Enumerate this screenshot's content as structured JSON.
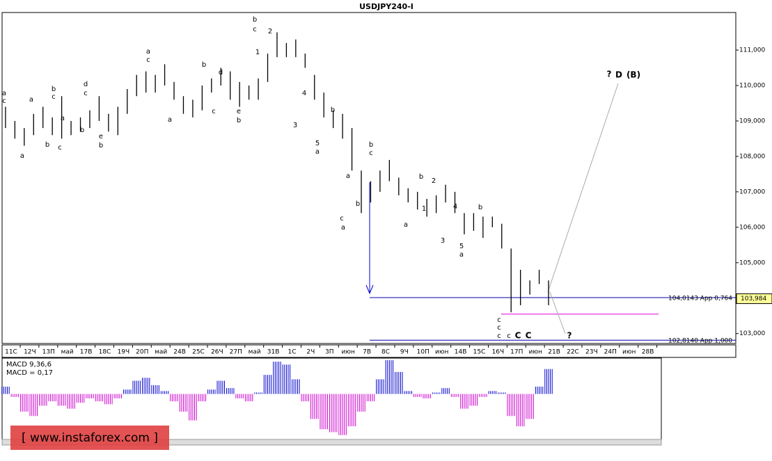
{
  "chart_data": [
    {
      "type": "ohlc",
      "title": "USDJPY240-I",
      "x": [
        -0.3,
        0.2,
        0.7,
        1.2,
        1.7,
        2.2,
        2.7,
        3.2,
        3.7,
        4.2,
        4.7,
        5.2,
        5.7,
        6.2,
        6.7,
        7.2,
        7.7,
        8.2,
        8.7,
        9.2,
        9.7,
        10.2,
        10.7,
        11.2,
        11.7,
        12.2,
        12.7,
        13.2,
        13.7,
        14.2,
        14.7,
        15.2,
        15.7,
        16.2,
        16.7,
        17.2,
        17.7,
        18.2,
        18.7,
        19.2,
        19.7,
        20.2,
        20.7,
        21.2,
        21.7,
        22.2,
        22.7,
        23.2,
        23.7,
        24.2,
        24.7,
        25.2,
        25.7,
        26.2,
        26.7,
        27.2,
        27.7,
        28.2,
        28.7
      ],
      "high": [
        109.4,
        109.0,
        108.8,
        109.2,
        109.4,
        109.1,
        109.7,
        109.0,
        109.1,
        109.3,
        109.7,
        109.2,
        109.4,
        109.9,
        110.3,
        110.4,
        110.3,
        110.6,
        110.1,
        109.7,
        109.6,
        110.0,
        110.2,
        110.5,
        110.4,
        110.1,
        110.0,
        110.2,
        110.9,
        111.5,
        111.2,
        111.3,
        110.9,
        110.3,
        109.8,
        109.3,
        109.2,
        108.8,
        107.6,
        107.3,
        107.6,
        107.9,
        107.4,
        107.1,
        107.0,
        106.8,
        106.9,
        107.2,
        107.0,
        106.4,
        106.4,
        106.3,
        106.3,
        106.1,
        105.4,
        104.8,
        104.5,
        104.8,
        104.5
      ],
      "low": [
        108.8,
        108.5,
        108.3,
        108.6,
        108.8,
        108.6,
        108.5,
        108.6,
        108.7,
        108.8,
        109.0,
        108.7,
        108.6,
        109.2,
        109.7,
        109.8,
        109.8,
        110.0,
        109.6,
        109.2,
        109.1,
        109.3,
        109.8,
        110.0,
        109.6,
        109.4,
        109.6,
        109.6,
        110.1,
        110.8,
        110.8,
        110.8,
        110.5,
        109.6,
        109.1,
        108.8,
        108.5,
        107.6,
        106.4,
        106.7,
        107.0,
        107.3,
        106.9,
        106.7,
        106.5,
        106.3,
        106.4,
        106.7,
        106.4,
        105.8,
        105.9,
        105.7,
        106.0,
        105.4,
        103.6,
        103.8,
        104.1,
        104.4,
        103.8
      ],
      "color": "#000000",
      "xlim": [
        -0.483,
        38.7
      ],
      "xticks": [
        {
          "value": 0,
          "label": "11С"
        },
        {
          "value": 1,
          "label": "12Ч"
        },
        {
          "value": 2,
          "label": "13П"
        },
        {
          "value": 3,
          "label": "май"
        },
        {
          "value": 4,
          "label": "17В"
        },
        {
          "value": 5,
          "label": "18С"
        },
        {
          "value": 6,
          "label": "19Ч"
        },
        {
          "value": 7,
          "label": "20П"
        },
        {
          "value": 8,
          "label": "май"
        },
        {
          "value": 9,
          "label": "24В"
        },
        {
          "value": 10,
          "label": "25С"
        },
        {
          "value": 11,
          "label": "26Ч"
        },
        {
          "value": 12,
          "label": "27П"
        },
        {
          "value": 13,
          "label": "май"
        },
        {
          "value": 14,
          "label": "31В"
        },
        {
          "value": 15,
          "label": "1С"
        },
        {
          "value": 16,
          "label": "2Ч"
        },
        {
          "value": 17,
          "label": "3П"
        },
        {
          "value": 18,
          "label": "июн"
        },
        {
          "value": 19,
          "label": "7В"
        },
        {
          "value": 20,
          "label": "8С"
        },
        {
          "value": 21,
          "label": "9Ч"
        },
        {
          "value": 22,
          "label": "10П"
        },
        {
          "value": 23,
          "label": "июн"
        },
        {
          "value": 24,
          "label": "14В"
        },
        {
          "value": 25,
          "label": "15С"
        },
        {
          "value": 26,
          "label": "16Ч"
        },
        {
          "value": 27,
          "label": "17П"
        },
        {
          "value": 28,
          "label": "июн"
        },
        {
          "value": 29,
          "label": "21В"
        },
        {
          "value": 30,
          "label": "22С"
        },
        {
          "value": 31,
          "label": "23Ч"
        },
        {
          "value": 32,
          "label": "24П"
        },
        {
          "value": 33,
          "label": "июн"
        },
        {
          "value": 34,
          "label": "28В"
        }
      ],
      "ylim": [
        102.72,
        112.06
      ],
      "yticks": [
        {
          "value": 103,
          "label": "103,000"
        },
        {
          "value": 104,
          "label": "104,000"
        },
        {
          "value": 105,
          "label": "105,000"
        },
        {
          "value": 106,
          "label": "106,000"
        },
        {
          "value": 107,
          "label": "107,000"
        },
        {
          "value": 108,
          "label": "108,000"
        },
        {
          "value": 109,
          "label": "109,000"
        },
        {
          "value": 110,
          "label": "110,000"
        },
        {
          "value": 111,
          "label": "111,000"
        }
      ],
      "levels": [
        {
          "value": 104.0143,
          "label": "104,0143 App 0,764",
          "color": "#0000aa"
        },
        {
          "value": 102.814,
          "label": "102,8140 App 1,000",
          "color": "#0000aa"
        }
      ],
      "support_line": {
        "value": 103.55,
        "color": "#dd00dd"
      },
      "current_price": {
        "value": 103.984,
        "label": "103,984"
      },
      "annotations": [
        {
          "text": "a",
          "color": "#000000"
        },
        {
          "text": "c",
          "color": "#0000cc"
        },
        {
          "text": "a",
          "color": "#0000cc"
        },
        {
          "text": "a",
          "color": "#000000"
        },
        {
          "text": "b",
          "color": "#000000"
        },
        {
          "text": "b",
          "color": "#0000cc"
        },
        {
          "text": "c",
          "color": "#000000"
        },
        {
          "text": "c",
          "color": "#0000cc"
        },
        {
          "text": "a",
          "color": "#000000"
        },
        {
          "text": "b",
          "color": "#000000"
        },
        {
          "text": "d",
          "color": "#0000cc"
        },
        {
          "text": "c",
          "color": "#000000"
        },
        {
          "text": "e",
          "color": "#0000cc"
        },
        {
          "text": "b",
          "color": "#000000"
        },
        {
          "text": "a",
          "color": "#0000cc"
        },
        {
          "text": "c",
          "color": "#000000"
        },
        {
          "text": "a",
          "color": "#0000cc"
        },
        {
          "text": "b",
          "color": "#0000cc"
        },
        {
          "text": "d",
          "color": "#0000cc"
        },
        {
          "text": "c",
          "color": "#0000cc"
        },
        {
          "text": "e",
          "color": "#0000cc"
        },
        {
          "text": "b",
          "color": "#0000cc"
        },
        {
          "text": "b",
          "color": "#1a8fc0"
        },
        {
          "text": "c",
          "color": "#0000cc"
        },
        {
          "text": "1",
          "color": "#000000"
        },
        {
          "text": "2",
          "color": "#000000"
        },
        {
          "text": "4",
          "color": "#000000"
        },
        {
          "text": "3",
          "color": "#000000"
        },
        {
          "text": "5",
          "color": "#000000"
        },
        {
          "text": "a",
          "color": "#0000cc"
        },
        {
          "text": "b",
          "color": "#0000cc"
        },
        {
          "text": "c",
          "color": "#0000cc"
        },
        {
          "text": "a",
          "color": "#0000cc"
        },
        {
          "text": "a",
          "color": "#0000cc"
        },
        {
          "text": "b",
          "color": "#0000cc"
        },
        {
          "text": "b",
          "color": "#0000cc"
        },
        {
          "text": "c",
          "color": "#0000cc"
        },
        {
          "text": "b",
          "color": "#000000"
        },
        {
          "text": "2",
          "color": "#000000"
        },
        {
          "text": "1",
          "color": "#000000"
        },
        {
          "text": "a",
          "color": "#000000"
        },
        {
          "text": "4",
          "color": "#aa0000"
        },
        {
          "text": "3",
          "color": "#000000"
        },
        {
          "text": "5",
          "color": "#000000"
        },
        {
          "text": "a",
          "color": "#0000cc"
        },
        {
          "text": "b",
          "color": "#0000cc"
        },
        {
          "text": "c",
          "color": "#0000cc"
        },
        {
          "text": "c",
          "color": "#000000"
        },
        {
          "text": "c",
          "color": "#0000cc"
        },
        {
          "text": "c",
          "color": "#1a8fc0"
        },
        {
          "text": "C",
          "color": "#0000cc"
        },
        {
          "text": "C",
          "color": "#1a8fc0"
        },
        {
          "text": "?",
          "color": "#000000"
        },
        {
          "text": "D",
          "color": "#1a8fc0"
        },
        {
          "text": "(B)",
          "color": "#cc0000"
        },
        {
          "text": "?",
          "color": "#cc0000"
        }
      ],
      "watermark": "[ www.instaforex.com ]"
    },
    {
      "type": "bar",
      "title": "MACD 9,36,6",
      "value_text": "MACD = 0,17",
      "ylim": [
        -0.3,
        0.23
      ],
      "positive_color": "#0000cc",
      "negative_color": "#cc00cc",
      "values": [
        0.05,
        -0.02,
        -0.12,
        -0.15,
        -0.08,
        -0.05,
        -0.08,
        -0.1,
        -0.06,
        -0.03,
        -0.05,
        -0.07,
        -0.03,
        0.03,
        0.09,
        0.11,
        0.06,
        0.02,
        -0.05,
        -0.12,
        -0.18,
        -0.05,
        0.03,
        0.09,
        0.04,
        -0.03,
        -0.05,
        0.01,
        0.13,
        0.22,
        0.2,
        0.1,
        -0.05,
        -0.17,
        -0.24,
        -0.26,
        -0.28,
        -0.22,
        -0.12,
        -0.05,
        0.1,
        0.23,
        0.15,
        0.02,
        -0.02,
        -0.03,
        0.01,
        0.04,
        -0.02,
        -0.1,
        -0.08,
        -0.02,
        0.02,
        0.01,
        -0.15,
        -0.22,
        -0.17,
        0.05,
        0.17
      ]
    }
  ]
}
